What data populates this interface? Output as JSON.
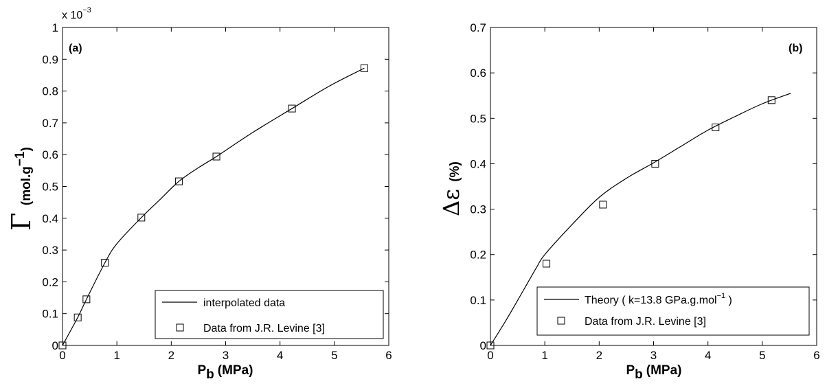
{
  "chart_data": [
    {
      "type": "line",
      "panel_label": "(a)",
      "xlabel": {
        "main": "P",
        "sub": "b",
        "unit": "(MPa)"
      },
      "ylabel": {
        "symbol": "Γ",
        "unit_pre": "(mol.g",
        "unit_sup": "−1",
        "unit_post": ")"
      },
      "exponent_label": {
        "pre": "x 10",
        "sup": "−3"
      },
      "xlim": [
        0,
        6
      ],
      "ylim": [
        0,
        1
      ],
      "xticks": [
        0,
        1,
        2,
        3,
        4,
        5,
        6
      ],
      "yticks": [
        0,
        0.1,
        0.2,
        0.3,
        0.4,
        0.5,
        0.6,
        0.7,
        0.8,
        0.9,
        1
      ],
      "ytick_labels": [
        "0",
        "0.1",
        "0.2",
        "0.3",
        "0.4",
        "0.5",
        "0.6",
        "0.7",
        "0.8",
        "0.9",
        "1"
      ],
      "legend_position": "bottom-right",
      "series": [
        {
          "name": "interpolated data",
          "kind": "line",
          "x": [
            0,
            0.28,
            0.44,
            0.78,
            1.0,
            1.45,
            1.8,
            2.14,
            2.5,
            2.83,
            3.5,
            4.22,
            4.9,
            5.55
          ],
          "y": [
            0,
            0.088,
            0.145,
            0.26,
            0.32,
            0.402,
            0.46,
            0.516,
            0.559,
            0.594,
            0.67,
            0.745,
            0.815,
            0.872
          ]
        },
        {
          "name": "Data from J.R. Levine [3]",
          "kind": "marker",
          "x": [
            0,
            0.28,
            0.44,
            0.78,
            1.45,
            2.14,
            2.83,
            4.22,
            5.55
          ],
          "y": [
            0,
            0.088,
            0.145,
            0.26,
            0.402,
            0.516,
            0.594,
            0.745,
            0.872
          ]
        }
      ]
    },
    {
      "type": "line",
      "panel_label": "(b)",
      "xlabel": {
        "main": "P",
        "sub": "b",
        "unit": "(MPa)"
      },
      "ylabel": {
        "symbol": "Δε",
        "unit": "(%)"
      },
      "xlim": [
        0,
        6
      ],
      "ylim": [
        0,
        0.7
      ],
      "xticks": [
        0,
        1,
        2,
        3,
        4,
        5,
        6
      ],
      "yticks": [
        0,
        0.1,
        0.2,
        0.3,
        0.4,
        0.5,
        0.6,
        0.7
      ],
      "ytick_labels": [
        "0",
        "0.1",
        "0.2",
        "0.3",
        "0.4",
        "0.5",
        "0.6",
        "0.7"
      ],
      "legend_position": "bottom-right",
      "series": [
        {
          "name": "Theory ( k=13.8 GPa.g.mol",
          "name_sup": "−1",
          "name_post": " )",
          "kind": "line",
          "x": [
            0,
            0.3,
            0.6,
            0.85,
            1.0,
            1.5,
            2.0,
            2.5,
            3.0,
            3.5,
            4.0,
            4.5,
            5.0,
            5.52
          ],
          "y": [
            0,
            0.058,
            0.12,
            0.172,
            0.2,
            0.266,
            0.326,
            0.368,
            0.402,
            0.438,
            0.474,
            0.504,
            0.532,
            0.555
          ]
        },
        {
          "name": "Data from J.R. Levine [3]",
          "kind": "marker",
          "x": [
            0,
            1.03,
            2.07,
            3.03,
            4.14,
            5.17
          ],
          "y": [
            0,
            0.18,
            0.31,
            0.4,
            0.48,
            0.54
          ]
        }
      ]
    }
  ]
}
